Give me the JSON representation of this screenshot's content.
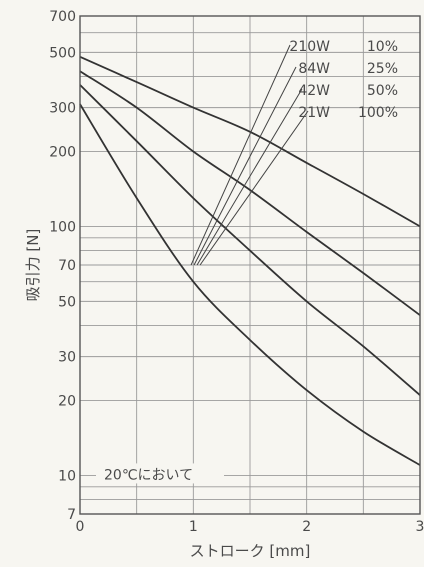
{
  "chart_data": {
    "type": "line",
    "xlabel": "ストローク [mm]",
    "ylabel": "吸引力 [N]",
    "xlim": [
      0,
      3
    ],
    "ylim": [
      7,
      700
    ],
    "yscale": "log",
    "x_ticks": [
      0,
      1,
      2,
      3
    ],
    "y_ticks": [
      7,
      10,
      20,
      30,
      50,
      70,
      100,
      200,
      300,
      500,
      700
    ],
    "grid": true,
    "annotation": "20℃において",
    "series": [
      {
        "name": "210W 10%",
        "x": [
          0,
          0.5,
          1,
          1.5,
          2,
          2.5,
          3
        ],
        "y": [
          480,
          380,
          300,
          240,
          180,
          135,
          100
        ]
      },
      {
        "name": "84W 25%",
        "x": [
          0,
          0.5,
          1,
          1.5,
          2,
          2.5,
          3
        ],
        "y": [
          420,
          300,
          200,
          140,
          95,
          65,
          44
        ]
      },
      {
        "name": "42W 50%",
        "x": [
          0,
          0.5,
          1,
          1.5,
          2,
          2.5,
          3
        ],
        "y": [
          370,
          220,
          130,
          80,
          50,
          33,
          21
        ]
      },
      {
        "name": "21W 100%",
        "x": [
          0,
          0.5,
          1,
          1.5,
          2,
          2.5,
          3
        ],
        "y": [
          310,
          130,
          60,
          35,
          22,
          15,
          11
        ]
      }
    ]
  }
}
